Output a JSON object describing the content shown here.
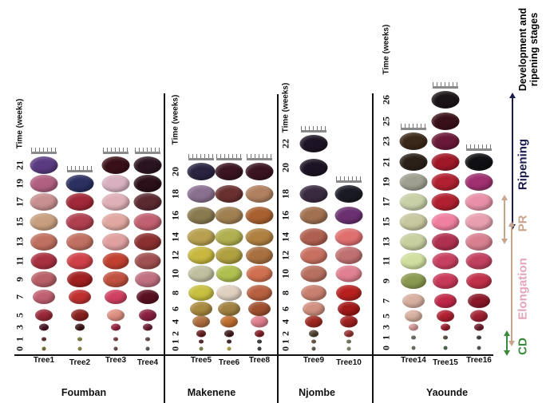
{
  "axis_title": "Time (weeks)",
  "legend_title": "Development and ripening stages",
  "stages": [
    {
      "label": "Ripening",
      "color": "#1c1c4e"
    },
    {
      "label": "PR",
      "color": "#c9a38c"
    },
    {
      "label": "Elongation",
      "color": "#e2a6b8"
    },
    {
      "label": "CD",
      "color": "#3b8a3b"
    }
  ],
  "regions": [
    {
      "name": "Foumban",
      "ticks": [
        "0",
        "1",
        "3",
        "5",
        "7",
        "9",
        "11",
        "13",
        "15",
        "17",
        "19",
        "21"
      ],
      "trees": [
        {
          "label": "Tree1",
          "colors": [
            "#7a7020",
            "#5a1a20",
            "#4a1020",
            "#9a2838",
            "#c06070",
            "#b86068",
            "#a83040",
            "#c07060",
            "#c8a080",
            "#c89090",
            "#b06080",
            "#5a3a80"
          ]
        },
        {
          "label": "Tree2",
          "colors": [
            "#9a9040",
            "#8a8a30",
            "#3a1010",
            "#8a2020",
            "#c03030",
            "#a02020",
            "#d04048",
            "#c07060",
            "#b04050",
            "#a02838",
            "#2a3060"
          ]
        },
        {
          "label": "Tree3",
          "colors": [
            "#604040",
            "#8a3040",
            "#a02040",
            "#e09080",
            "#d04060",
            "#c05040",
            "#c04030",
            "#e0a0a0",
            "#e0a8a0",
            "#e0b0b8",
            "#d8b0c0",
            "#3a1018"
          ]
        },
        {
          "label": "Tree4",
          "colors": [
            "#505050",
            "#604040",
            "#701830",
            "#8a2040",
            "#5a1020",
            "#c07080",
            "#a05050",
            "#8a3030",
            "#c06070",
            "#5a2a30",
            "#2a1018",
            "#2a1420"
          ]
        }
      ]
    },
    {
      "name": "Makenene",
      "ticks": [
        "0",
        "1",
        "2",
        "4",
        "6",
        "8",
        "10",
        "12",
        "14",
        "16",
        "18",
        "20"
      ],
      "trees": [
        {
          "label": "Tree5",
          "colors": [
            "#8a9040",
            "#5a1010",
            "#6a1a1a",
            "#b07040",
            "#a88a40",
            "#c8c040",
            "#c0c0a0",
            "#c8b840",
            "#b8a050",
            "#8a7a50",
            "#8a7090",
            "#2a2440"
          ]
        },
        {
          "label": "Tree6",
          "colors": [
            "#c8c040",
            "#301010",
            "#401818",
            "#c07030",
            "#a08040",
            "#e0d0c0",
            "#b0c050",
            "#b0a040",
            "#b0b050",
            "#a08050",
            "#6a3030",
            "#3a1420"
          ]
        },
        {
          "label": "Tree8",
          "colors": [
            "#303030",
            "#303030",
            "#8a1a20",
            "#e08090",
            "#a05030",
            "#b86040",
            "#d07050",
            "#a87040",
            "#b08040",
            "#a86030",
            "#b08060",
            "#3a1420"
          ]
        }
      ]
    },
    {
      "name": "Njombe",
      "ticks": [
        "0",
        "1",
        "2",
        "4",
        "6",
        "8",
        "10",
        "12",
        "14",
        "16",
        "18",
        "20",
        "22"
      ],
      "trees": [
        {
          "label": "Tree9",
          "colors": [
            "#605040",
            "#705040",
            "#504030",
            "#a02820",
            "#d09080",
            "#c88070",
            "#b87060",
            "#c87060",
            "#b06050",
            "#a07050",
            "#3a2a40",
            "#1c1424",
            "#1c1424"
          ]
        },
        {
          "label": "Tree10",
          "colors": [
            "#909070",
            "#808060",
            "#a03030",
            "#a02020",
            "#a01818",
            "#b82020",
            "#e08090",
            "#c07070",
            "#e07070",
            "#6a3070",
            "#1a1a24"
          ]
        }
      ]
    },
    {
      "name": "Yaounde",
      "ticks": [
        "0",
        "1",
        "3",
        "5",
        "7",
        "9",
        "11",
        "13",
        "15",
        "17",
        "19",
        "21",
        "23",
        "25",
        "26"
      ],
      "trees": [
        {
          "label": "Tree14",
          "colors": [
            "#707060",
            "#707060",
            "#e0a0a0",
            "#d8b0a0",
            "#d8b0a0",
            "#8a9a50",
            "#d0e0a0",
            "#c8d0a0",
            "#c8c8a0",
            "#c8d0a8",
            "#a0a090",
            "#2a2018",
            "#3a2818"
          ]
        },
        {
          "label": "Tree15",
          "colors": [
            "#406040",
            "#504830",
            "#a01828",
            "#b02030",
            "#c02848",
            "#c83858",
            "#c84060",
            "#b03050",
            "#f080a0",
            "#b02030",
            "#b02030",
            "#a01828",
            "#6a1838",
            "#3a1018",
            "#1a1418"
          ]
        },
        {
          "label": "Tree16",
          "colors": [
            "#505050",
            "#303030",
            "#701828",
            "#a02030",
            "#8a1828",
            "#c03048",
            "#c04060",
            "#d88090",
            "#e8a0b0",
            "#e890a8",
            "#a03070",
            "#101014"
          ]
        }
      ]
    }
  ]
}
